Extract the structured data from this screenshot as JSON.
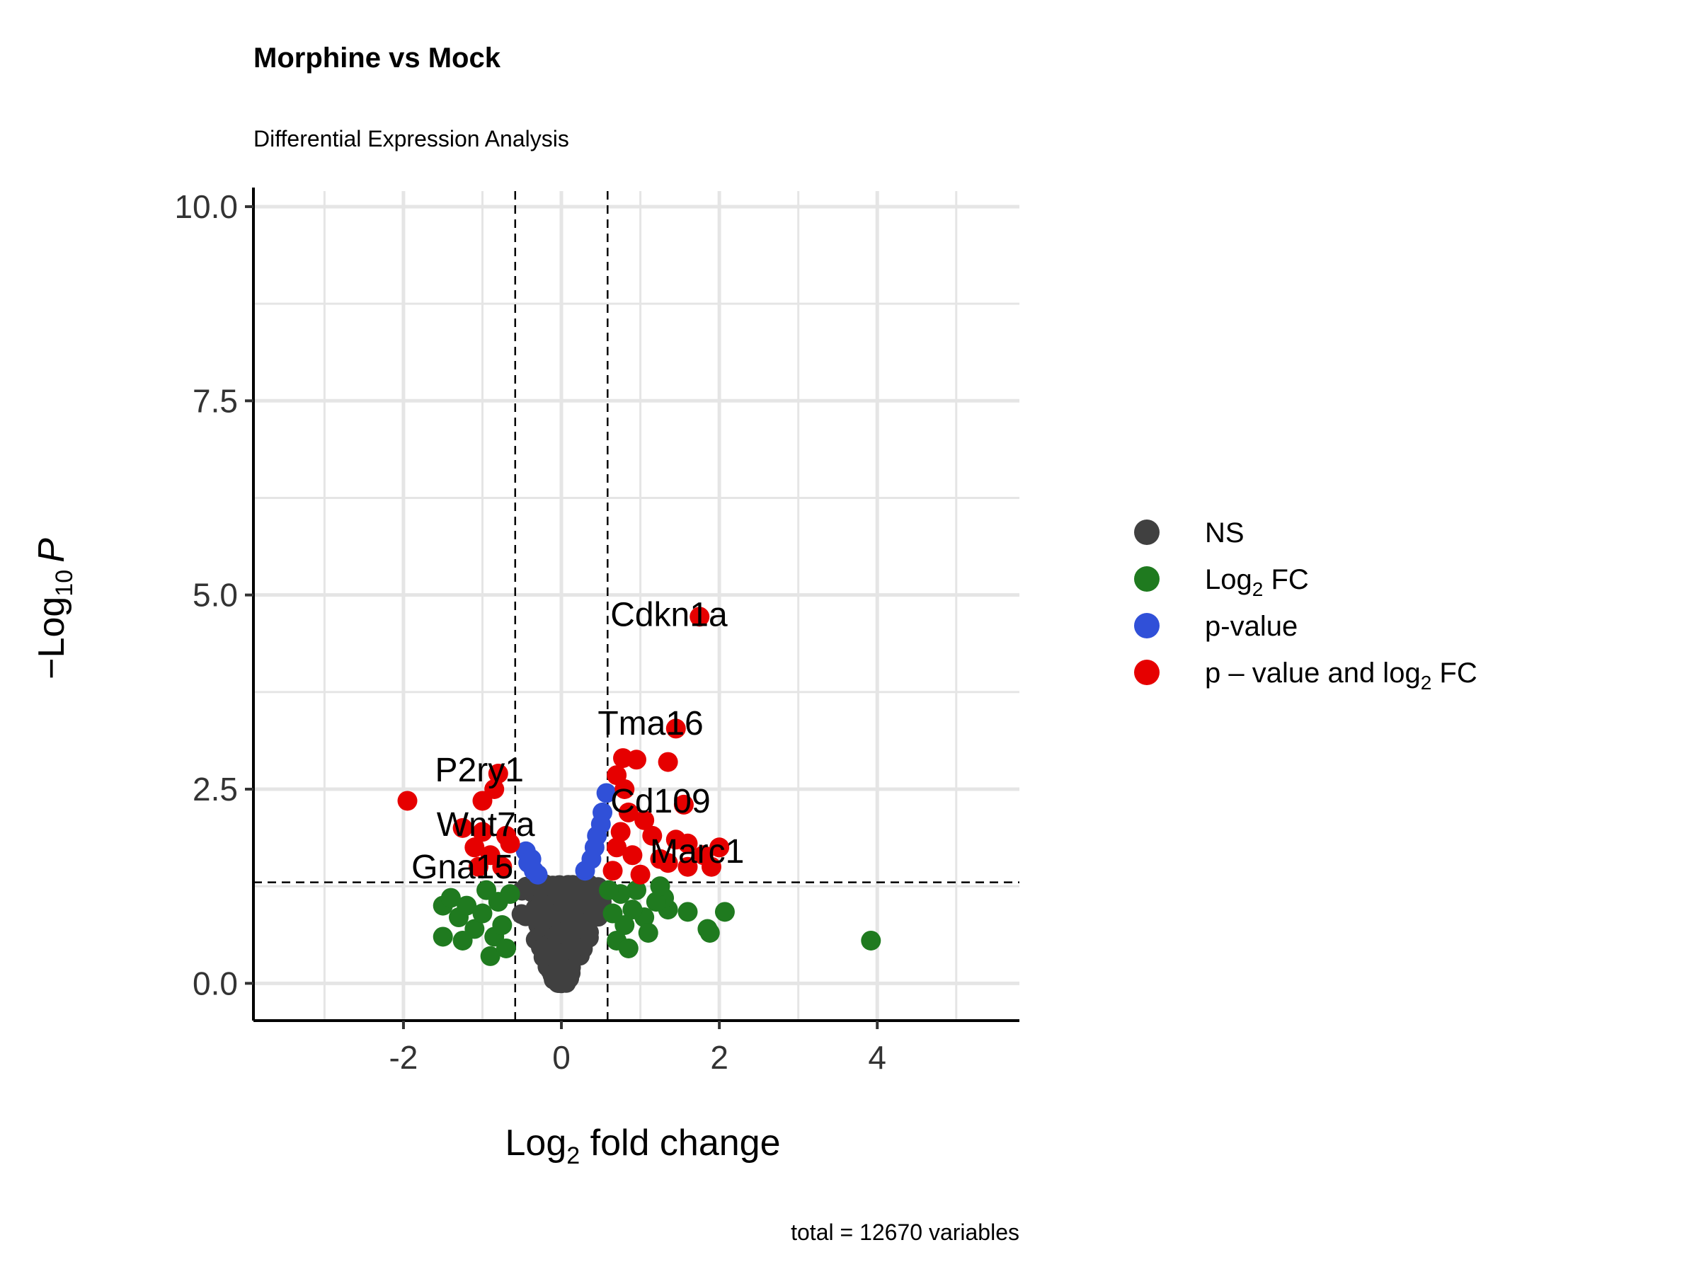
{
  "chart_data": {
    "type": "scatter",
    "title": "Morphine vs Mock",
    "subtitle": "Differential Expression Analysis",
    "xlabel": {
      "base": "Log",
      "sub": "2",
      "rest": " fold change"
    },
    "ylabel": {
      "prefix": "−Log",
      "sub": "10",
      "var": "P"
    },
    "caption": "total = 12670 variables",
    "xlim": [
      -3.9,
      5.8
    ],
    "ylim": [
      -0.48,
      10.2
    ],
    "x_ticks": [
      {
        "value": -2,
        "label": "-2"
      },
      {
        "value": 0,
        "label": "0"
      },
      {
        "value": 2,
        "label": "2"
      },
      {
        "value": 4,
        "label": "4"
      }
    ],
    "y_ticks": [
      {
        "value": 0,
        "label": "0.0"
      },
      {
        "value": 2.5,
        "label": "2.5"
      },
      {
        "value": 5,
        "label": "5.0"
      },
      {
        "value": 7.5,
        "label": "7.5"
      },
      {
        "value": 10,
        "label": "10.0"
      }
    ],
    "grid": true,
    "thresholds": {
      "log2fc": 0.585,
      "neg_log10_p": 1.3
    },
    "colors": {
      "ns": "#404040",
      "log2fc": "#1f7a1f",
      "pvalue": "#3050d8",
      "both": "#e60000",
      "grid": "#e5e5e5",
      "axis": "#000000"
    },
    "legend": {
      "position": "right",
      "items": [
        {
          "key": "ns",
          "label": "NS"
        },
        {
          "key": "log2fc",
          "label": "Log",
          "sub": "2",
          "after": " FC"
        },
        {
          "key": "pvalue",
          "label": "p-value"
        },
        {
          "key": "both",
          "label": "p – value and log",
          "sub": "2",
          "after": " FC"
        }
      ]
    },
    "series": [
      {
        "key": "log2fc",
        "points": [
          [
            3.92,
            0.55
          ],
          [
            2.07,
            0.92
          ],
          [
            1.88,
            0.65
          ],
          [
            1.85,
            0.7
          ],
          [
            1.6,
            0.92
          ],
          [
            1.35,
            0.95
          ],
          [
            1.3,
            1.1
          ],
          [
            1.2,
            1.05
          ],
          [
            1.05,
            0.85
          ],
          [
            0.95,
            1.2
          ],
          [
            0.9,
            0.95
          ],
          [
            0.8,
            0.75
          ],
          [
            0.75,
            1.15
          ],
          [
            0.7,
            0.55
          ],
          [
            0.65,
            0.9
          ],
          [
            1.1,
            0.65
          ],
          [
            0.85,
            0.45
          ],
          [
            1.25,
            1.25
          ],
          [
            0.6,
            1.2
          ],
          [
            -1.5,
            0.6
          ],
          [
            -1.5,
            1.0
          ],
          [
            -1.4,
            1.1
          ],
          [
            -1.3,
            0.85
          ],
          [
            -1.2,
            1.0
          ],
          [
            -1.1,
            0.7
          ],
          [
            -1.0,
            0.9
          ],
          [
            -0.95,
            1.2
          ],
          [
            -0.9,
            0.35
          ],
          [
            -0.85,
            0.6
          ],
          [
            -0.8,
            1.05
          ],
          [
            -0.75,
            0.75
          ],
          [
            -0.7,
            0.45
          ],
          [
            -0.65,
            1.15
          ],
          [
            -1.25,
            0.55
          ]
        ]
      },
      {
        "key": "pvalue",
        "points": [
          [
            0.57,
            2.45
          ],
          [
            0.52,
            2.2
          ],
          [
            0.5,
            2.05
          ],
          [
            0.45,
            1.9
          ],
          [
            0.42,
            1.75
          ],
          [
            0.38,
            1.6
          ],
          [
            0.3,
            1.45
          ],
          [
            -0.45,
            1.7
          ],
          [
            -0.42,
            1.55
          ],
          [
            -0.35,
            1.45
          ],
          [
            -0.38,
            1.6
          ],
          [
            -0.3,
            1.4
          ]
        ]
      },
      {
        "key": "both",
        "points": [
          [
            1.75,
            4.72
          ],
          [
            1.45,
            3.28
          ],
          [
            0.78,
            2.9
          ],
          [
            0.95,
            2.88
          ],
          [
            1.35,
            2.85
          ],
          [
            0.7,
            2.68
          ],
          [
            0.8,
            2.5
          ],
          [
            1.55,
            2.3
          ],
          [
            0.85,
            2.2
          ],
          [
            1.05,
            2.1
          ],
          [
            0.75,
            1.95
          ],
          [
            1.15,
            1.9
          ],
          [
            1.45,
            1.85
          ],
          [
            1.6,
            1.8
          ],
          [
            2.0,
            1.75
          ],
          [
            1.8,
            1.65
          ],
          [
            1.9,
            1.5
          ],
          [
            1.6,
            1.5
          ],
          [
            0.9,
            1.65
          ],
          [
            1.25,
            1.6
          ],
          [
            0.65,
            1.45
          ],
          [
            1.0,
            1.4
          ],
          [
            1.35,
            1.55
          ],
          [
            0.7,
            1.75
          ],
          [
            -1.95,
            2.35
          ],
          [
            -0.8,
            2.7
          ],
          [
            -0.85,
            2.5
          ],
          [
            -1.0,
            2.35
          ],
          [
            -1.25,
            2.0
          ],
          [
            -1.0,
            1.95
          ],
          [
            -0.7,
            1.9
          ],
          [
            -1.1,
            1.75
          ],
          [
            -0.9,
            1.65
          ],
          [
            -0.75,
            1.5
          ],
          [
            -1.05,
            1.5
          ],
          [
            -0.65,
            1.8
          ]
        ]
      }
    ],
    "annotations": [
      {
        "text": "Cdkn1a",
        "x": 0.62,
        "y": 4.6
      },
      {
        "text": "Tma16",
        "x": 0.46,
        "y": 3.2
      },
      {
        "text": "P2ry1",
        "x": -1.6,
        "y": 2.6
      },
      {
        "text": "Cd109",
        "x": 0.62,
        "y": 2.2
      },
      {
        "text": "Wnt7a",
        "x": -1.58,
        "y": 1.9
      },
      {
        "text": "Marc1",
        "x": 1.12,
        "y": 1.55
      },
      {
        "text": "Gna15",
        "x": -1.9,
        "y": 1.35
      }
    ]
  }
}
